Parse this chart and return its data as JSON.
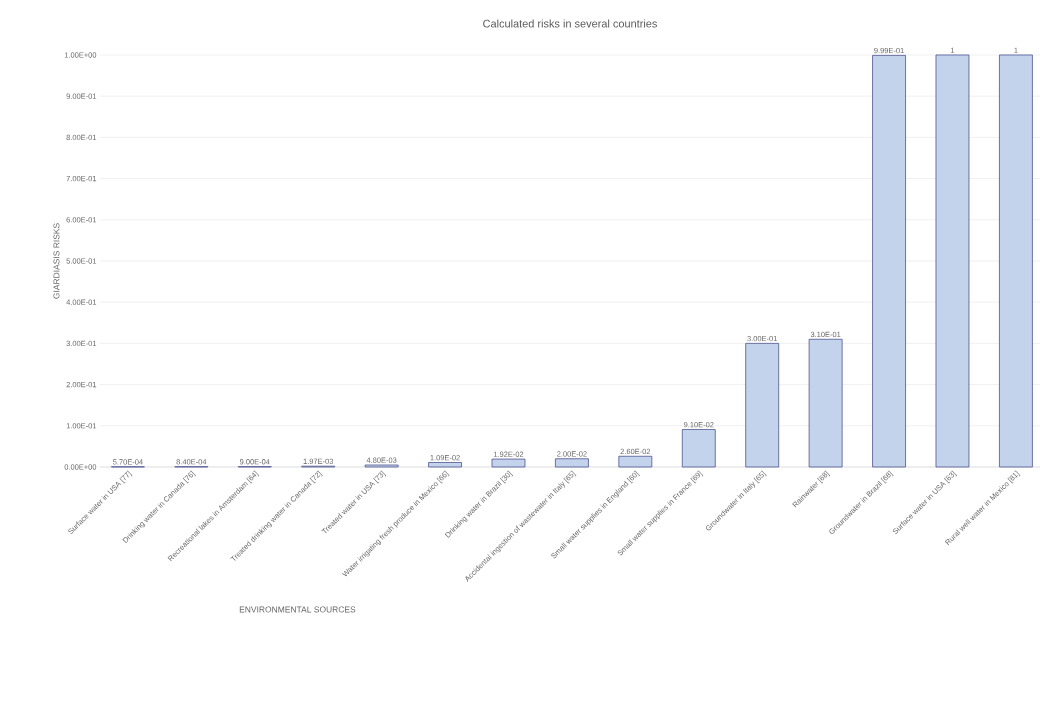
{
  "chart_data": {
    "type": "bar",
    "title": "Calculated  risks in several countries",
    "xlabel": "ENVIRONMENTAL SOURCES",
    "ylabel": "GIARDIASIS RISKS",
    "categories": [
      "Surface water in USA [77]",
      "Drinking water in Canada [76]",
      "Recreational lakes in Amsterdam [64]",
      "Treated drinking water in Canada [72]",
      "Treated water in USA [73]",
      "Water irrigating fresh produce in Mexico [66]",
      "Drinking water in Brazil [30]",
      "Accidental ingestion of wastewater in Italy [65]",
      "Small water supplies in England [60]",
      "Small water supplies in France [69]",
      "Groundwater in Italy [65]",
      "Rainwater [68]",
      "Groundwater in Brazil [68]",
      "Surface water in USA [63]",
      "Rural well water in Mexico [81]"
    ],
    "values": [
      0.00057,
      0.00084,
      0.0009,
      0.00197,
      0.0048,
      0.0109,
      0.0192,
      0.02,
      0.026,
      0.091,
      0.3,
      0.31,
      0.999,
      1,
      1
    ],
    "value_labels": [
      "5.70E-04",
      "8.40E-04",
      "9.00E-04",
      "1.97E-03",
      "4.80E-03",
      "1.09E-02",
      "1.92E-02",
      "2.00E-02",
      "2.60E-02",
      "9.10E-02",
      "3.00E-01",
      "3.10E-01",
      "9.99E-01",
      "1",
      "1"
    ],
    "color": "#c3d3ec",
    "ylim": [
      0,
      1
    ],
    "yticks": [
      {
        "value": 0,
        "label": "0.00E+00"
      },
      {
        "value": 0.1,
        "label": "1.00E-01"
      },
      {
        "value": 0.2,
        "label": "2.00E-01"
      },
      {
        "value": 0.3,
        "label": "3.00E-01"
      },
      {
        "value": 0.4,
        "label": "4.00E-01"
      },
      {
        "value": 0.5,
        "label": "5.00E-01"
      },
      {
        "value": 0.6,
        "label": "6.00E-01"
      },
      {
        "value": 0.7,
        "label": "7.00E-01"
      },
      {
        "value": 0.8,
        "label": "8.00E-01"
      },
      {
        "value": 0.9,
        "label": "9.00E-01"
      },
      {
        "value": 1,
        "label": "1.00E+00"
      }
    ],
    "grid": "y"
  }
}
